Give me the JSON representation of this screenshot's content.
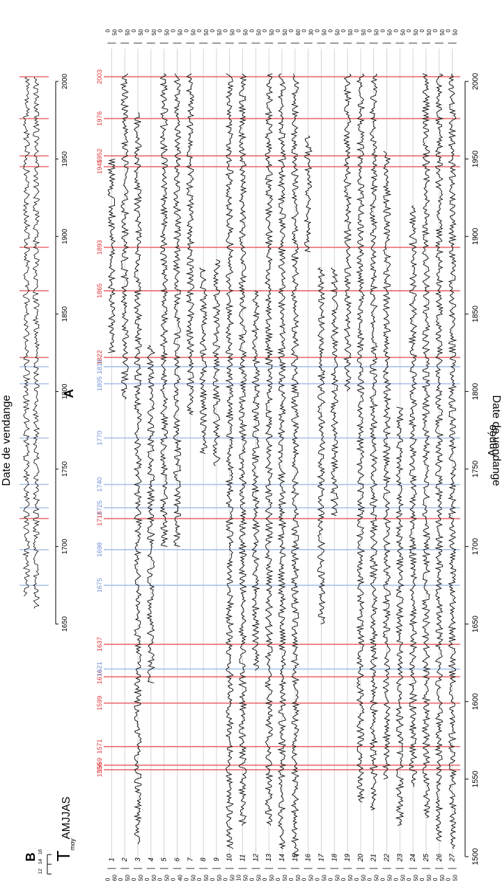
{
  "figure": {
    "panel_a_label": "A",
    "panel_b_label": "B",
    "temp_label_main": "T",
    "temp_label_sub": "moy",
    "temp_label_months": "AMJJAS",
    "temp_ticks": [
      "16",
      "14",
      "12"
    ],
    "temp_ticks_small": [
      "14",
      "12"
    ],
    "side_label": "Date de vendange",
    "x_axis_label": "Année"
  },
  "colors": {
    "warm_line": "#e8696b",
    "cool_line": "#a9c1ea",
    "warm_text": "#e0363a",
    "cool_text": "#6f8fd6",
    "series": "#000000",
    "grid": "#c8c8c8"
  },
  "chart_data": {
    "type": "line",
    "title": "",
    "x_label": "Année",
    "x_range": [
      1500,
      2010
    ],
    "x_ticks": [
      1500,
      1550,
      1600,
      1650,
      1700,
      1750,
      1800,
      1850,
      1900,
      1950,
      2000
    ],
    "panel_a_x_ticks": [
      1650,
      1700,
      1750,
      1800,
      1850,
      1900,
      1950,
      2000
    ],
    "panel_a_x_range": [
      1650,
      2010
    ],
    "y_label": "Date de vendange",
    "warm_years": [
      "1556",
      "1559",
      "1571",
      "1599",
      "1616",
      "1637",
      "1718",
      "1822",
      "1865",
      "1893",
      "1945",
      "1952",
      "1976",
      "2003"
    ],
    "cool_years": [
      "1621",
      "1675",
      "1698",
      "1725",
      "1740",
      "1770",
      "1805",
      "1816"
    ],
    "warm_year_values": [
      1556,
      1559,
      1571,
      1599,
      1616,
      1637,
      1718,
      1822,
      1865,
      1893,
      1945,
      1952,
      1976,
      2003
    ],
    "cool_year_values": [
      1621,
      1675,
      1698,
      1725,
      1740,
      1770,
      1805,
      1816
    ],
    "series": [
      {
        "name": "1",
        "start": 1825,
        "end": 1950,
        "scale_left": [
          "0",
          "60"
        ],
        "scale_right": [
          "0",
          "50"
        ]
      },
      {
        "name": "2",
        "start": 1795,
        "end": 2005,
        "scale_left": [
          "0",
          "50"
        ],
        "scale_right": [
          "0",
          "50"
        ]
      },
      {
        "name": "3",
        "start": 1508,
        "end": 1980,
        "scale_left": [
          "0",
          "50"
        ],
        "scale_right": [
          "0",
          "50"
        ]
      },
      {
        "name": "4",
        "start": 1612,
        "end": 1830,
        "scale_left": [
          "0",
          "50"
        ],
        "scale_right": [
          "0",
          "50"
        ]
      },
      {
        "name": "5",
        "start": 1700,
        "end": 2005,
        "scale_left": [
          "0",
          "50"
        ],
        "scale_right": [
          "0",
          "50"
        ]
      },
      {
        "name": "6",
        "start": 1700,
        "end": 2005,
        "scale_left": [
          "0",
          "40"
        ],
        "scale_right": [
          "0",
          "50"
        ]
      },
      {
        "name": "7",
        "start": 1785,
        "end": 2005,
        "scale_left": [
          "0",
          "50"
        ],
        "scale_right": [
          "0",
          "50"
        ]
      },
      {
        "name": "8",
        "start": 1760,
        "end": 1880,
        "scale_left": [
          "0",
          "50"
        ],
        "scale_right": [
          "0",
          "50"
        ]
      },
      {
        "name": "9",
        "start": 1752,
        "end": 1885,
        "scale_left": [
          "0",
          "50"
        ],
        "scale_right": [
          "0",
          "50"
        ]
      },
      {
        "name": "10",
        "start": 1505,
        "end": 2005,
        "scale_left": [
          "0",
          "50"
        ],
        "scale_right": [
          "0",
          "50"
        ]
      },
      {
        "name": "11",
        "start": 1520,
        "end": 2005,
        "scale_left": [
          "10",
          "50"
        ],
        "scale_right": [
          "0",
          "50"
        ]
      },
      {
        "name": "12",
        "start": 1620,
        "end": 1865,
        "scale_left": [
          "0",
          "50"
        ],
        "scale_right": [
          "0",
          "50"
        ]
      },
      {
        "name": "13",
        "start": 1520,
        "end": 2005,
        "scale_left": [
          "0",
          "50"
        ],
        "scale_right": [
          "0",
          "50"
        ]
      },
      {
        "name": "14",
        "start": 1505,
        "end": 2005,
        "scale_left": [
          "0",
          "50"
        ],
        "scale_right": [
          "0",
          "50"
        ]
      },
      {
        "name": "15",
        "start": 1500,
        "end": 2005,
        "scale_left": [
          "0",
          "50"
        ],
        "scale_right": [
          "0",
          "60"
        ]
      },
      {
        "name": "16",
        "start": 1890,
        "end": 1965,
        "scale_left": [
          "0",
          "50"
        ],
        "scale_right": [
          "0",
          "30"
        ]
      },
      {
        "name": "17",
        "start": 1650,
        "end": 1880,
        "scale_left": [
          "0",
          "50"
        ],
        "scale_right": [
          "0",
          "50"
        ]
      },
      {
        "name": "18",
        "start": 1720,
        "end": 1880,
        "scale_left": [
          "0",
          "50"
        ],
        "scale_right": [
          "0",
          "50"
        ]
      },
      {
        "name": "19",
        "start": 1800,
        "end": 2005,
        "scale_left": [
          "0",
          "50"
        ],
        "scale_right": [
          "0",
          "50"
        ]
      },
      {
        "name": "20",
        "start": 1535,
        "end": 2005,
        "scale_left": [
          "0",
          "50"
        ],
        "scale_right": [
          "0",
          "50"
        ]
      },
      {
        "name": "21",
        "start": 1530,
        "end": 2005,
        "scale_left": [
          "0",
          "50"
        ],
        "scale_right": [
          "0",
          "50"
        ]
      },
      {
        "name": "22",
        "start": 1550,
        "end": 1955,
        "scale_left": [
          "0",
          "50"
        ],
        "scale_right": [
          "0",
          "50"
        ]
      },
      {
        "name": "23",
        "start": 1520,
        "end": 1790,
        "scale_left": [
          "0",
          "50"
        ],
        "scale_right": [
          "0",
          "50"
        ]
      },
      {
        "name": "24",
        "start": 1545,
        "end": 1920,
        "scale_left": [
          "0",
          "50"
        ],
        "scale_right": [
          "0",
          "50"
        ]
      },
      {
        "name": "25",
        "start": 1525,
        "end": 2005,
        "scale_left": [
          "0",
          "50"
        ],
        "scale_right": [
          "0",
          "50"
        ]
      },
      {
        "name": "26",
        "start": 1510,
        "end": 2005,
        "scale_left": [
          "0",
          "50"
        ],
        "scale_right": [
          "0",
          "50"
        ]
      },
      {
        "name": "27",
        "start": 1505,
        "end": 2005,
        "scale_left": [
          "0",
          "50"
        ],
        "scale_right": [
          "0",
          "50"
        ]
      }
    ]
  }
}
